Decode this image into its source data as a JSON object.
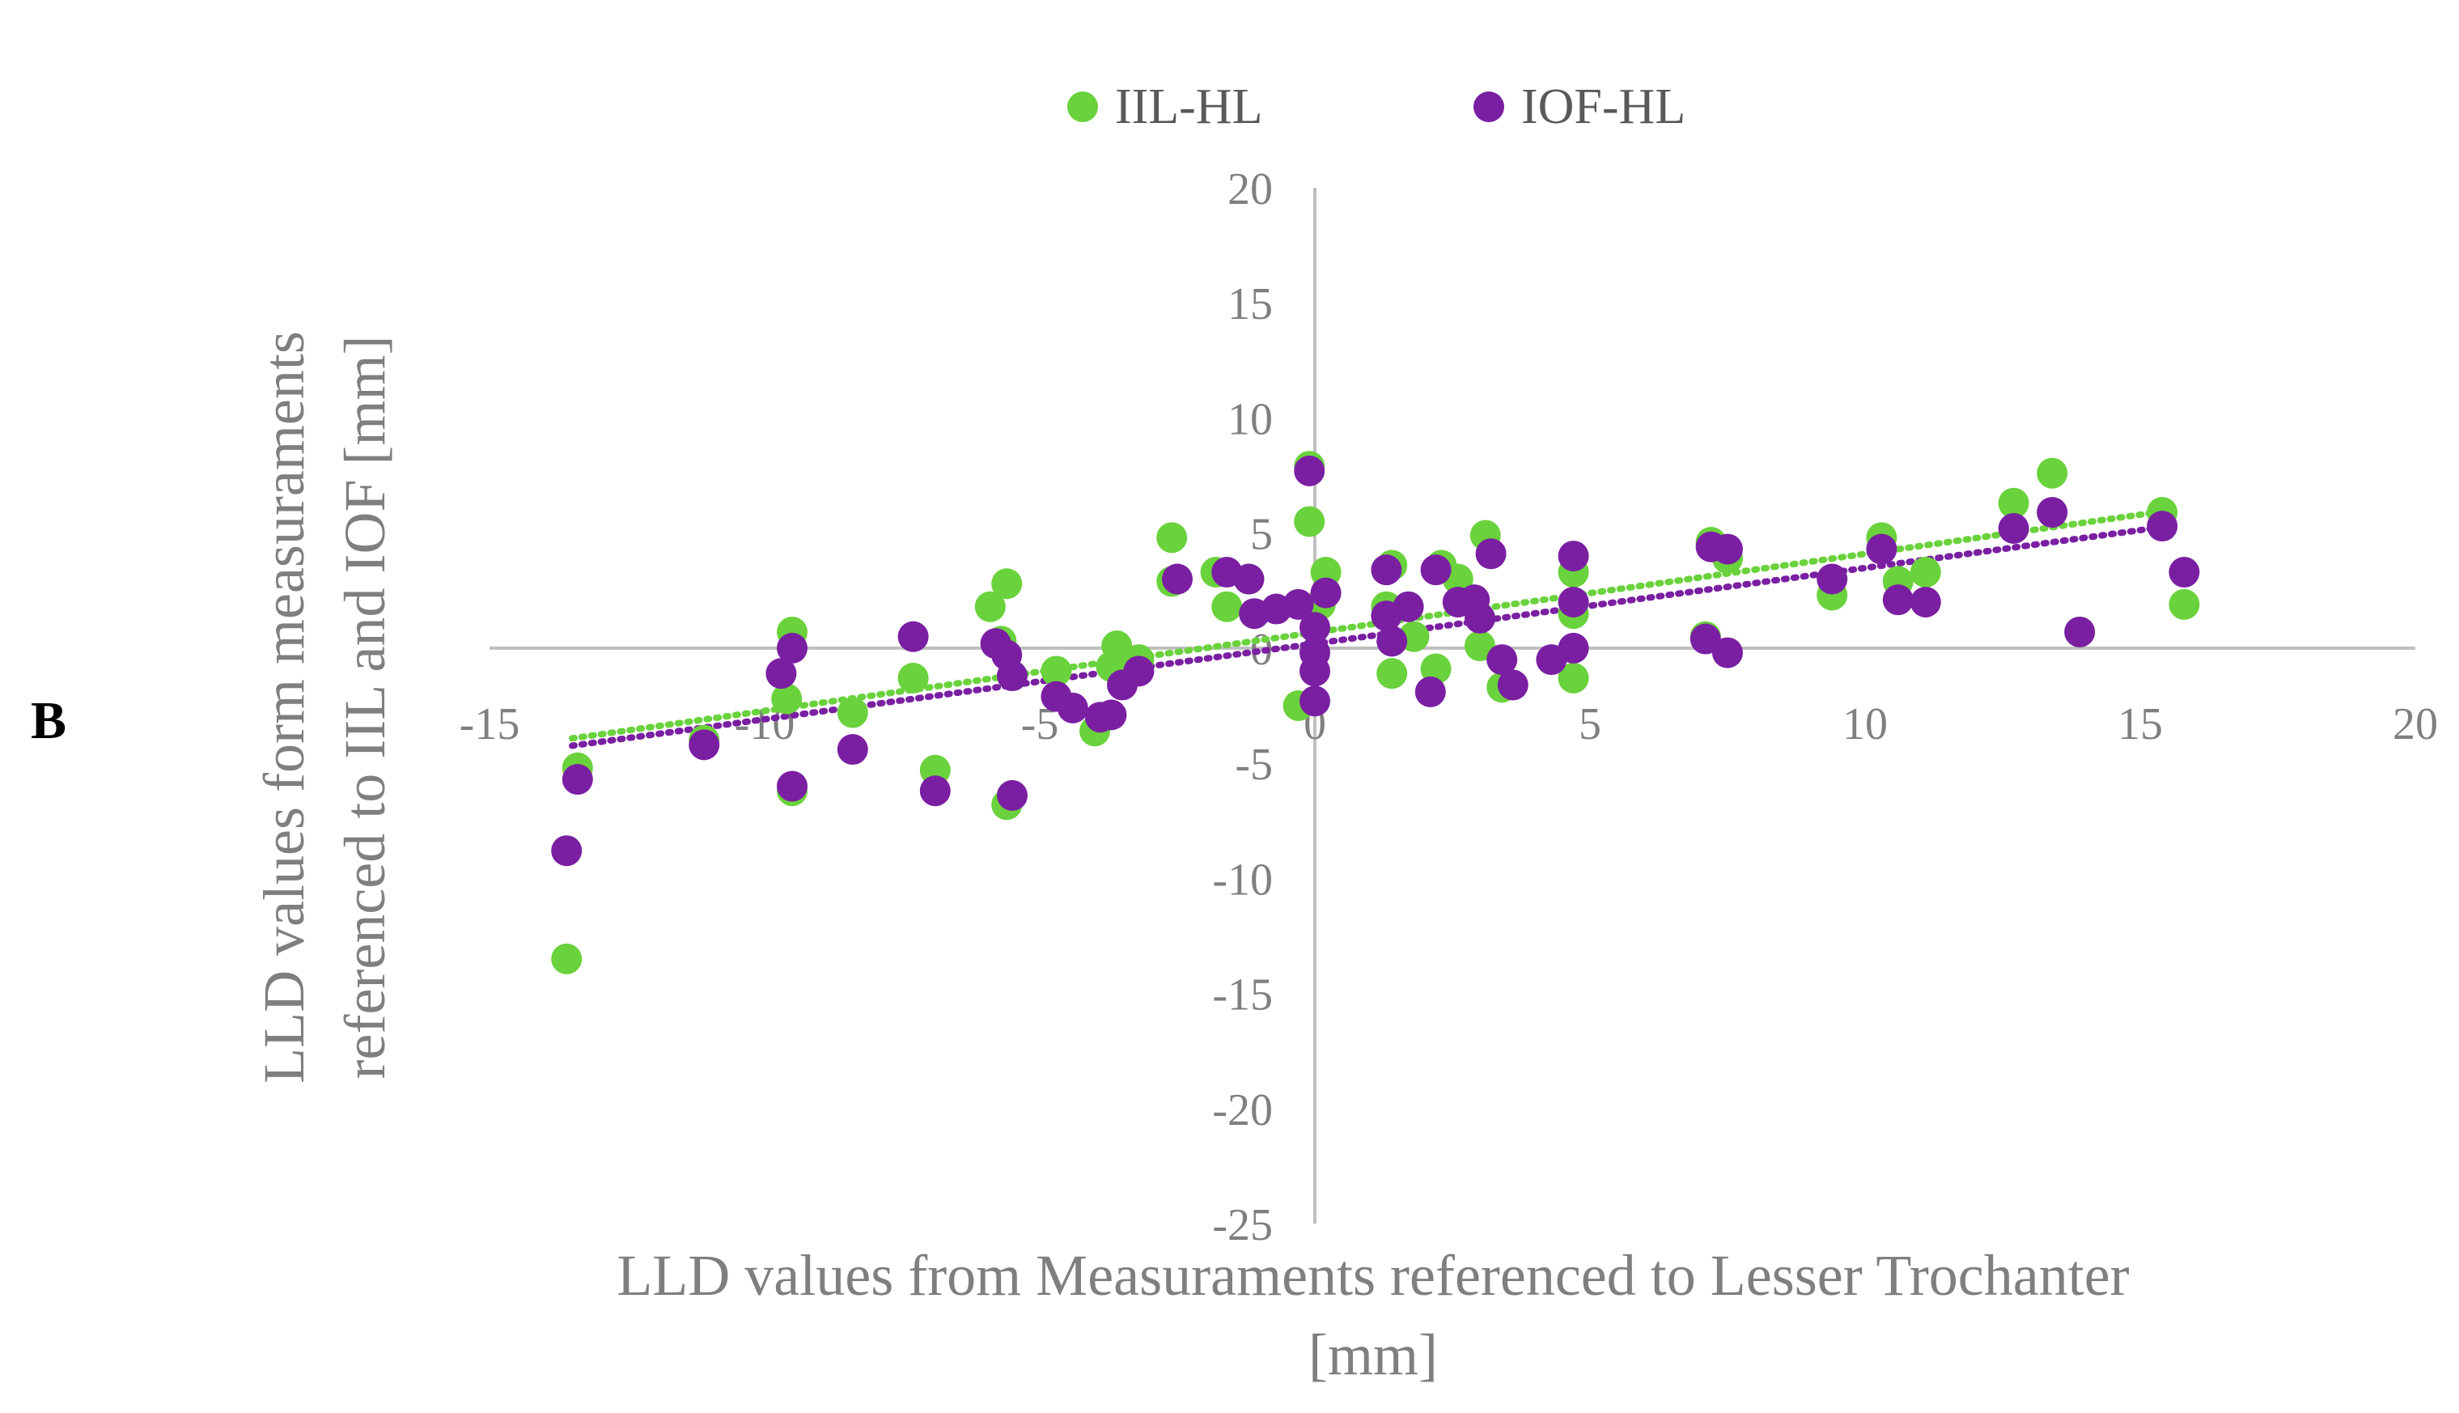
{
  "panel_label": "B",
  "chart_data": {
    "type": "scatter",
    "xlabel_lines": [
      "LLD values from Measuraments referenced to Lesser Trochanter",
      "[mm]"
    ],
    "ylabel_lines": [
      "LLD values form measuraments",
      "referenced to IIL and IOF [mm]"
    ],
    "xlim": [
      -15,
      20
    ],
    "ylim": [
      -25,
      20
    ],
    "x_ticks": [
      -15,
      -10,
      -5,
      0,
      5,
      10,
      15,
      20
    ],
    "y_ticks": [
      20,
      15,
      10,
      5,
      0,
      -5,
      -10,
      -15,
      -20,
      -25
    ],
    "x_tick_labels": [
      "-15",
      "-10",
      "-5",
      "0",
      "5",
      "10",
      "15",
      "20"
    ],
    "y_tick_labels": [
      "20",
      "15",
      "10",
      "5",
      "0",
      "-5",
      "-10",
      "-15",
      "-20",
      "-25"
    ],
    "grid": false,
    "legend_position": "top",
    "series": [
      {
        "name": "IIL-HL",
        "color": "#6ad23c",
        "trendline": true,
        "trend_range": [
          -13.5,
          15.5
        ],
        "points": [
          [
            -13.6,
            -13.5
          ],
          [
            -13.4,
            -5.2
          ],
          [
            -11.1,
            -4.0
          ],
          [
            -9.6,
            -2.2
          ],
          [
            -9.5,
            0.7
          ],
          [
            -9.5,
            -6.2
          ],
          [
            -8.4,
            -2.8
          ],
          [
            -7.3,
            -1.3
          ],
          [
            -6.9,
            -5.3
          ],
          [
            -5.9,
            1.8
          ],
          [
            -5.6,
            2.8
          ],
          [
            -5.7,
            0.3
          ],
          [
            -5.6,
            -6.8
          ],
          [
            -4.7,
            -1.0
          ],
          [
            -4.0,
            -3.6
          ],
          [
            -3.7,
            -0.8
          ],
          [
            -3.6,
            0.1
          ],
          [
            -3.2,
            -0.5
          ],
          [
            -2.6,
            4.8
          ],
          [
            -2.6,
            2.9
          ],
          [
            -1.8,
            3.3
          ],
          [
            -1.6,
            1.8
          ],
          [
            -1.2,
            3.0
          ],
          [
            -0.3,
            -2.5
          ],
          [
            -0.1,
            5.5
          ],
          [
            -0.1,
            7.9
          ],
          [
            0.2,
            3.3
          ],
          [
            0.1,
            1.9
          ],
          [
            1.3,
            1.8
          ],
          [
            1.4,
            3.6
          ],
          [
            1.4,
            -1.1
          ],
          [
            1.8,
            0.5
          ],
          [
            2.2,
            -0.9
          ],
          [
            2.3,
            3.6
          ],
          [
            2.6,
            3.0
          ],
          [
            3.0,
            0.1
          ],
          [
            3.1,
            4.9
          ],
          [
            3.4,
            -1.7
          ],
          [
            4.7,
            -1.3
          ],
          [
            4.7,
            1.5
          ],
          [
            4.7,
            3.3
          ],
          [
            7.1,
            0.5
          ],
          [
            7.2,
            4.6
          ],
          [
            7.5,
            3.9
          ],
          [
            9.4,
            2.3
          ],
          [
            10.3,
            4.8
          ],
          [
            10.6,
            2.9
          ],
          [
            11.1,
            3.3
          ],
          [
            12.7,
            6.3
          ],
          [
            13.4,
            7.6
          ],
          [
            13.9,
            0.7
          ],
          [
            15.4,
            5.9
          ],
          [
            15.8,
            1.9
          ]
        ]
      },
      {
        "name": "IOF-HL",
        "color": "#7a1fa2",
        "trendline": true,
        "trend_range": [
          -13.5,
          15.5
        ],
        "points": [
          [
            -13.6,
            -8.8
          ],
          [
            -13.4,
            -5.7
          ],
          [
            -11.1,
            -4.2
          ],
          [
            -9.7,
            -1.1
          ],
          [
            -9.5,
            0.0
          ],
          [
            -9.5,
            -6.0
          ],
          [
            -8.4,
            -4.4
          ],
          [
            -7.3,
            0.5
          ],
          [
            -6.9,
            -6.2
          ],
          [
            -5.8,
            0.2
          ],
          [
            -5.6,
            -0.3
          ],
          [
            -5.5,
            -1.2
          ],
          [
            -5.5,
            -6.4
          ],
          [
            -4.7,
            -2.1
          ],
          [
            -4.4,
            -2.6
          ],
          [
            -3.9,
            -3.0
          ],
          [
            -3.7,
            -2.9
          ],
          [
            -3.5,
            -1.6
          ],
          [
            -3.2,
            -1.0
          ],
          [
            -2.5,
            3.0
          ],
          [
            -1.6,
            3.3
          ],
          [
            -1.2,
            3.0
          ],
          [
            -1.1,
            1.5
          ],
          [
            -0.7,
            1.7
          ],
          [
            -0.3,
            1.9
          ],
          [
            -0.1,
            7.7
          ],
          [
            0.0,
            0.9
          ],
          [
            0.0,
            -0.2
          ],
          [
            0.0,
            -1.0
          ],
          [
            0.0,
            -2.3
          ],
          [
            0.2,
            2.4
          ],
          [
            1.3,
            3.4
          ],
          [
            1.3,
            1.4
          ],
          [
            1.4,
            0.3
          ],
          [
            1.7,
            1.8
          ],
          [
            2.1,
            -1.9
          ],
          [
            2.2,
            3.4
          ],
          [
            2.6,
            2.0
          ],
          [
            2.9,
            2.1
          ],
          [
            3.0,
            1.3
          ],
          [
            3.2,
            4.1
          ],
          [
            3.4,
            -0.5
          ],
          [
            3.6,
            -1.6
          ],
          [
            4.3,
            -0.5
          ],
          [
            4.7,
            0.0
          ],
          [
            4.7,
            4.0
          ],
          [
            4.7,
            2.0
          ],
          [
            7.1,
            0.4
          ],
          [
            7.2,
            4.4
          ],
          [
            7.5,
            4.3
          ],
          [
            7.5,
            -0.2
          ],
          [
            9.4,
            3.0
          ],
          [
            10.3,
            4.3
          ],
          [
            10.6,
            2.1
          ],
          [
            11.1,
            2.0
          ],
          [
            12.7,
            5.2
          ],
          [
            13.4,
            5.9
          ],
          [
            13.9,
            0.7
          ],
          [
            15.4,
            5.3
          ],
          [
            15.8,
            3.3
          ]
        ]
      }
    ]
  }
}
